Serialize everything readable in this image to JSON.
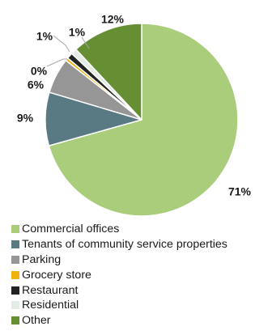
{
  "chart_data": {
    "type": "pie",
    "title": "",
    "start": "top, clockwise",
    "legend_position": "bottom-left",
    "slices": [
      {
        "label": "Commercial offices",
        "value": 71,
        "display": "71%",
        "color": "#a9cd7a"
      },
      {
        "label": "Tenants of community service properties",
        "value": 9,
        "display": "9%",
        "color": "#5a7a83"
      },
      {
        "label": "Parking",
        "value": 6,
        "display": "6%",
        "color": "#969696"
      },
      {
        "label": "Grocery store",
        "value": 0.5,
        "display": "0%",
        "color": "#f2b20e"
      },
      {
        "label": "Restaurant",
        "value": 1,
        "display": "1%",
        "color": "#222222"
      },
      {
        "label": "Residential",
        "value": 1,
        "display": "1%",
        "color": "#e4ece6"
      },
      {
        "label": "Other",
        "value": 12,
        "display": "12%",
        "color": "#668f34"
      }
    ]
  }
}
